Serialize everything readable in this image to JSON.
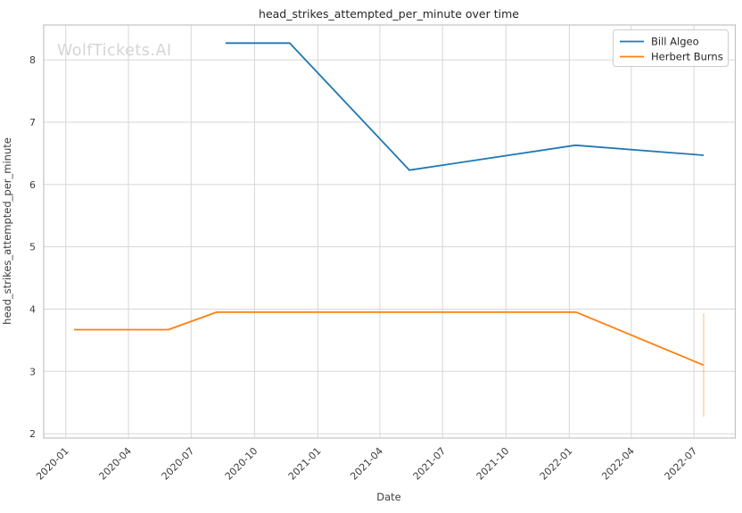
{
  "watermark": "WolfTickets.AI",
  "colors": {
    "series_blue": "#1f77b4",
    "series_orange": "#ff7f0e",
    "grid": "#d7d7d7",
    "plot_border": "#c3c3c3",
    "tick_label": "#3d3d3d",
    "title": "#262626",
    "watermark": "#d5d5d5",
    "background": "#ffffff",
    "legend_border": "#cccccc"
  },
  "chart_data": {
    "type": "line",
    "title": "head_strikes_attempted_per_minute over time",
    "xlabel": "Date",
    "ylabel": "head_strikes_attempted_per_minute",
    "grid": true,
    "legend_position": "upper right",
    "x_tick_labels": [
      "2020-01",
      "2020-04",
      "2020-07",
      "2020-10",
      "2021-01",
      "2021-04",
      "2021-07",
      "2021-10",
      "2022-01",
      "2022-04",
      "2022-07"
    ],
    "y_ticks": [
      2,
      3,
      4,
      5,
      6,
      7,
      8
    ],
    "xlim": [
      "2019-11-30",
      "2022-08-30"
    ],
    "ylim": [
      1.93,
      8.56
    ],
    "series": [
      {
        "name": "Bill Algeo",
        "color": "#1f77b4",
        "points": [
          [
            "2020-08-20",
            8.27
          ],
          [
            "2020-11-21",
            8.27
          ],
          [
            "2021-05-14",
            6.23
          ],
          [
            "2022-01-10",
            6.63
          ],
          [
            "2022-07-15",
            6.47
          ]
        ]
      },
      {
        "name": "Herbert Burns",
        "color": "#ff7f0e",
        "points": [
          [
            "2020-01-13",
            3.67
          ],
          [
            "2020-05-29",
            3.67
          ],
          [
            "2020-08-07",
            3.95
          ],
          [
            "2022-01-11",
            3.95
          ],
          [
            "2022-07-15",
            3.1
          ]
        ]
      }
    ],
    "error_bars": [
      {
        "series": "Herbert Burns",
        "date": "2022-07-15",
        "y_min": 2.27,
        "y_max": 3.93,
        "color": "#ff7f0e",
        "opacity": 0.35
      }
    ]
  }
}
